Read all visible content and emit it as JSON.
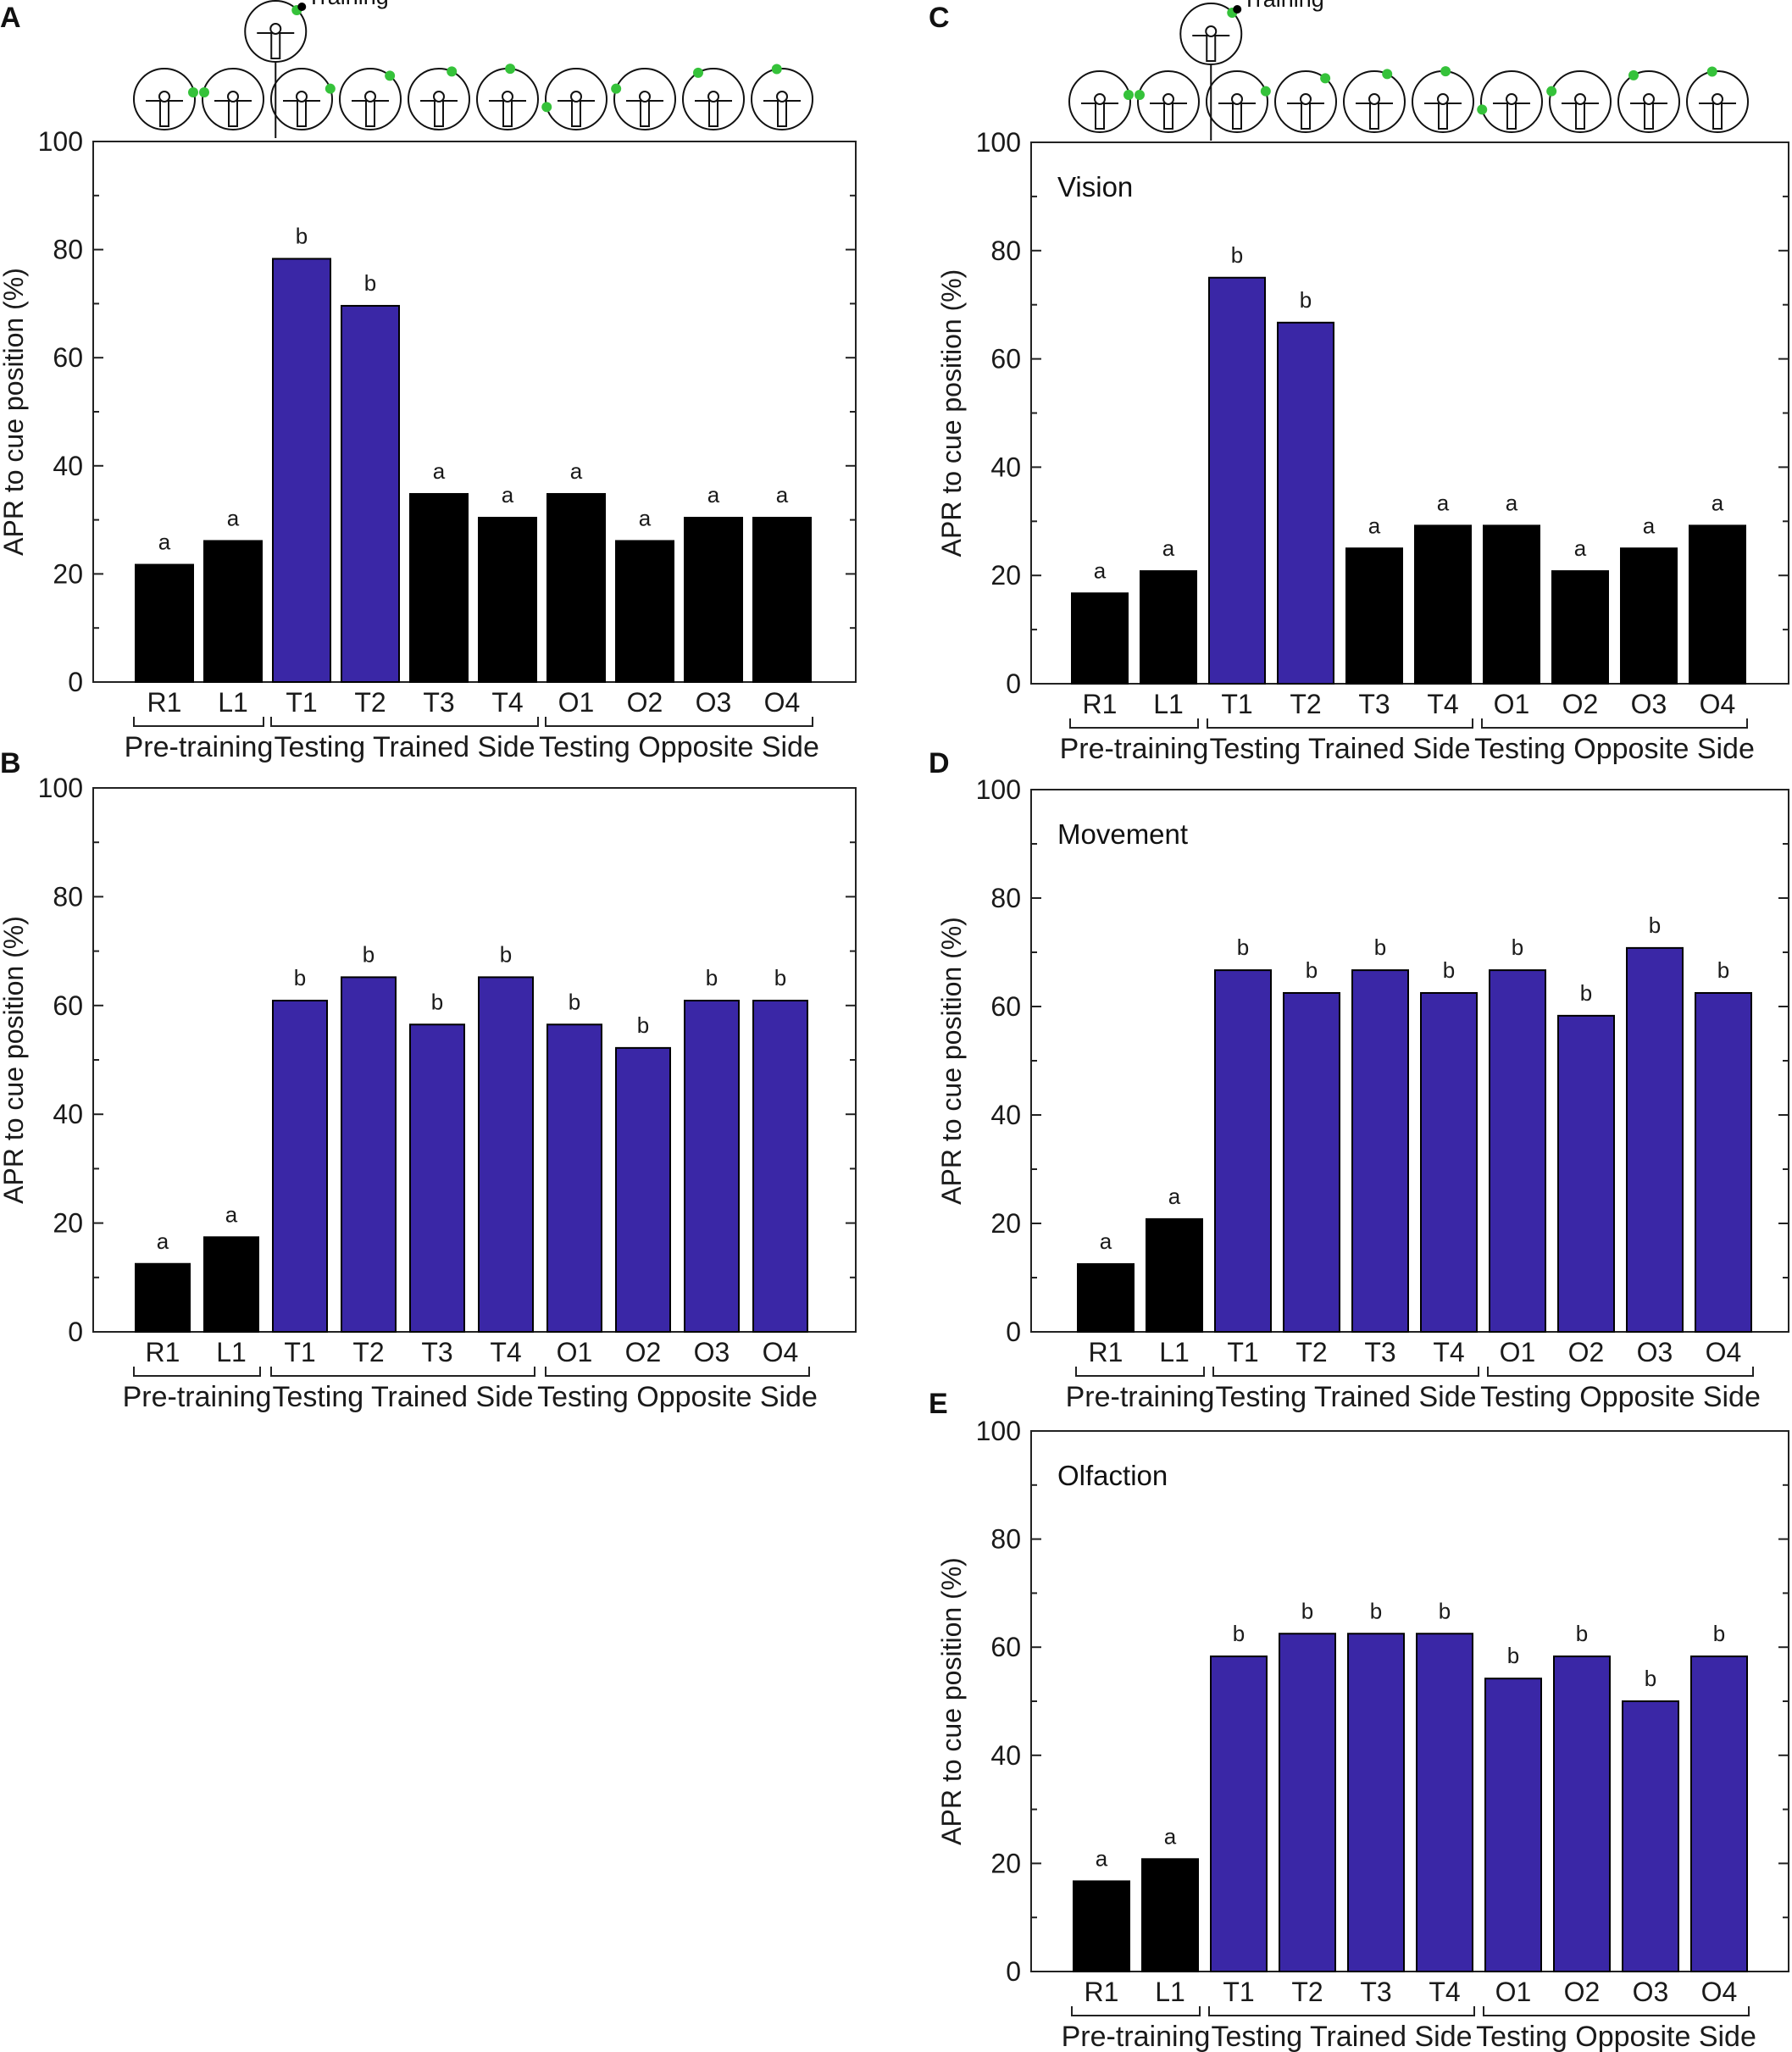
{
  "colors": {
    "trained": "#3a27a6",
    "baseline": "#000000",
    "cue_dot": "#35c23a",
    "axis": "#222222"
  },
  "shared": {
    "y_axis_title": "APR to cue position (%)",
    "y_ticks": [
      "0",
      "20",
      "40",
      "60",
      "80",
      "100"
    ],
    "categories": [
      "R1",
      "L1",
      "T1",
      "T2",
      "T3",
      "T4",
      "O1",
      "O2",
      "O3",
      "O4"
    ],
    "groups": [
      "Pre-training",
      "Testing Trained Side",
      "Testing Opposite Side"
    ],
    "training_label": "Training"
  },
  "chart_data": [
    {
      "panel": "A",
      "type": "bar",
      "title": "",
      "ylabel": "APR to cue position (%)",
      "ylim": [
        0,
        100
      ],
      "categories": [
        "R1",
        "L1",
        "T1",
        "T2",
        "T3",
        "T4",
        "O1",
        "O2",
        "O3",
        "O4"
      ],
      "values": [
        21.7,
        26.1,
        78.3,
        69.6,
        34.8,
        30.4,
        34.8,
        26.1,
        30.4,
        30.4
      ],
      "significance": [
        "a",
        "a",
        "b",
        "b",
        "a",
        "a",
        "a",
        "a",
        "a",
        "a"
      ],
      "bar_colors": [
        "baseline",
        "baseline",
        "trained",
        "trained",
        "baseline",
        "baseline",
        "baseline",
        "baseline",
        "baseline",
        "baseline"
      ],
      "groups": [
        "Pre-training",
        "Testing Trained Side",
        "Testing Opposite Side"
      ]
    },
    {
      "panel": "B",
      "type": "bar",
      "title": "",
      "ylabel": "APR to cue position (%)",
      "ylim": [
        0,
        100
      ],
      "categories": [
        "R1",
        "L1",
        "T1",
        "T2",
        "T3",
        "T4",
        "O1",
        "O2",
        "O3",
        "O4"
      ],
      "values": [
        12.5,
        17.4,
        60.9,
        65.2,
        56.5,
        65.2,
        56.5,
        52.2,
        60.9,
        60.9
      ],
      "significance": [
        "a",
        "a",
        "b",
        "b",
        "b",
        "b",
        "b",
        "b",
        "b",
        "b"
      ],
      "bar_colors": [
        "baseline",
        "baseline",
        "trained",
        "trained",
        "trained",
        "trained",
        "trained",
        "trained",
        "trained",
        "trained"
      ],
      "groups": [
        "Pre-training",
        "Testing Trained Side",
        "Testing Opposite Side"
      ]
    },
    {
      "panel": "C",
      "type": "bar",
      "title": "Vision",
      "ylabel": "APR to cue position (%)",
      "ylim": [
        0,
        100
      ],
      "categories": [
        "R1",
        "L1",
        "T1",
        "T2",
        "T3",
        "T4",
        "O1",
        "O2",
        "O3",
        "O4"
      ],
      "values": [
        16.7,
        20.8,
        75.0,
        66.7,
        25.0,
        29.2,
        29.2,
        20.8,
        25.0,
        29.2
      ],
      "significance": [
        "a",
        "a",
        "b",
        "b",
        "a",
        "a",
        "a",
        "a",
        "a",
        "a"
      ],
      "bar_colors": [
        "baseline",
        "baseline",
        "trained",
        "trained",
        "baseline",
        "baseline",
        "baseline",
        "baseline",
        "baseline",
        "baseline"
      ],
      "groups": [
        "Pre-training",
        "Testing Trained Side",
        "Testing Opposite Side"
      ]
    },
    {
      "panel": "D",
      "type": "bar",
      "title": "Movement",
      "ylabel": "APR to cue position (%)",
      "ylim": [
        0,
        100
      ],
      "categories": [
        "R1",
        "L1",
        "T1",
        "T2",
        "T3",
        "T4",
        "O1",
        "O2",
        "O3",
        "O4"
      ],
      "values": [
        12.5,
        20.8,
        66.7,
        62.5,
        66.7,
        62.5,
        66.7,
        58.3,
        70.8,
        62.5
      ],
      "significance": [
        "a",
        "a",
        "b",
        "b",
        "b",
        "b",
        "b",
        "b",
        "b",
        "b"
      ],
      "bar_colors": [
        "baseline",
        "baseline",
        "trained",
        "trained",
        "trained",
        "trained",
        "trained",
        "trained",
        "trained",
        "trained"
      ],
      "groups": [
        "Pre-training",
        "Testing Trained Side",
        "Testing Opposite Side"
      ]
    },
    {
      "panel": "E",
      "type": "bar",
      "title": "Olfaction",
      "ylabel": "APR to cue position (%)",
      "ylim": [
        0,
        100
      ],
      "categories": [
        "R1",
        "L1",
        "T1",
        "T2",
        "T3",
        "T4",
        "O1",
        "O2",
        "O3",
        "O4"
      ],
      "values": [
        16.7,
        20.8,
        58.3,
        62.5,
        62.5,
        62.5,
        54.2,
        58.3,
        50.0,
        58.3
      ],
      "significance": [
        "a",
        "a",
        "b",
        "b",
        "b",
        "b",
        "b",
        "b",
        "b",
        "b"
      ],
      "bar_colors": [
        "baseline",
        "baseline",
        "trained",
        "trained",
        "trained",
        "trained",
        "trained",
        "trained",
        "trained",
        "trained"
      ],
      "groups": [
        "Pre-training",
        "Testing Trained Side",
        "Testing Opposite Side"
      ]
    }
  ]
}
